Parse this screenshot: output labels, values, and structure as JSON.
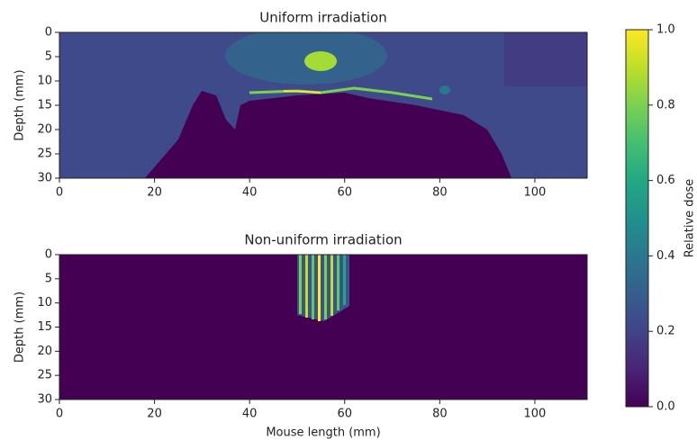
{
  "chart_data": [
    {
      "type": "heatmap",
      "title": "Uniform irradiation",
      "ylabel": "Depth (mm)",
      "xlim": [
        0,
        111
      ],
      "ylim": [
        30,
        0
      ],
      "xticks": [
        0,
        20,
        40,
        60,
        80,
        100
      ],
      "yticks": [
        0,
        5,
        10,
        15,
        20,
        25,
        30
      ]
    },
    {
      "type": "heatmap",
      "title": "Non-uniform irradiation",
      "ylabel": "Depth (mm)",
      "xlabel": "Mouse length (mm)",
      "xlim": [
        0,
        111
      ],
      "ylim": [
        30,
        0
      ],
      "xticks": [
        0,
        20,
        40,
        60,
        80,
        100
      ],
      "yticks": [
        0,
        5,
        10,
        15,
        20,
        25,
        30
      ]
    }
  ],
  "colorbar": {
    "label": "Relative dose",
    "lim": [
      0,
      1
    ],
    "ticks": [
      {
        "value": 0,
        "label": "0.0"
      },
      {
        "value": 0.2,
        "label": "0.2"
      },
      {
        "value": 0.4,
        "label": "0.4"
      },
      {
        "value": 0.6,
        "label": "0.6"
      },
      {
        "value": 0.8,
        "label": "0.8"
      },
      {
        "value": 1,
        "label": "1.0"
      }
    ]
  }
}
